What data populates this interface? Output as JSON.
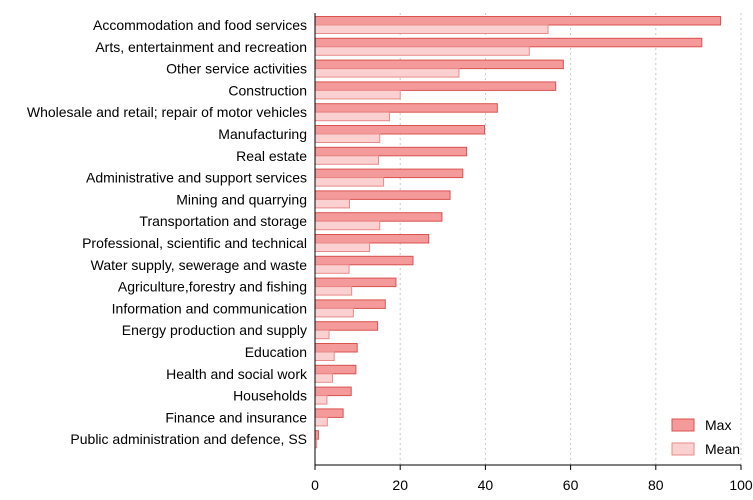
{
  "chart_data": {
    "type": "bar",
    "orientation": "horizontal",
    "categories": [
      "Accommodation and food services",
      "Arts, entertainment and recreation",
      "Other service activities",
      "Construction",
      "Wholesale and retail; repair of motor vehicles",
      "Manufacturing",
      "Real estate",
      "Administrative and support services",
      "Mining and quarrying",
      "Transportation and storage",
      "Professional, scientific and technical",
      "Water supply, sewerage and waste",
      "Agriculture,forestry and fishing",
      "Information and communication",
      "Energy production and supply",
      "Education",
      "Health and social work",
      "Households",
      "Finance and insurance",
      "Public administration and defence, SS"
    ],
    "series": [
      {
        "name": "Max",
        "color": "#f59a9a",
        "stroke": "#d9534f",
        "values": [
          95.2,
          90.8,
          58.3,
          56.5,
          42.8,
          39.8,
          35.6,
          34.7,
          31.7,
          29.8,
          26.7,
          23.0,
          19.0,
          16.5,
          14.7,
          9.9,
          9.6,
          8.5,
          6.6,
          0.8
        ]
      },
      {
        "name": "Mean",
        "color": "#fbd0d0",
        "stroke": "#e98a8a",
        "values": [
          54.7,
          50.3,
          33.8,
          20.0,
          17.5,
          15.2,
          14.9,
          16.1,
          8.1,
          15.2,
          12.8,
          8.0,
          8.6,
          9.0,
          3.3,
          4.5,
          4.1,
          2.8,
          2.9,
          0.4
        ]
      }
    ],
    "xlim": [
      0,
      100
    ],
    "xticks": [
      0,
      20,
      40,
      60,
      80,
      100
    ],
    "title": "",
    "xlabel": "",
    "ylabel": "",
    "grid": "vertical dotted",
    "legend_position": "bottom-right"
  }
}
